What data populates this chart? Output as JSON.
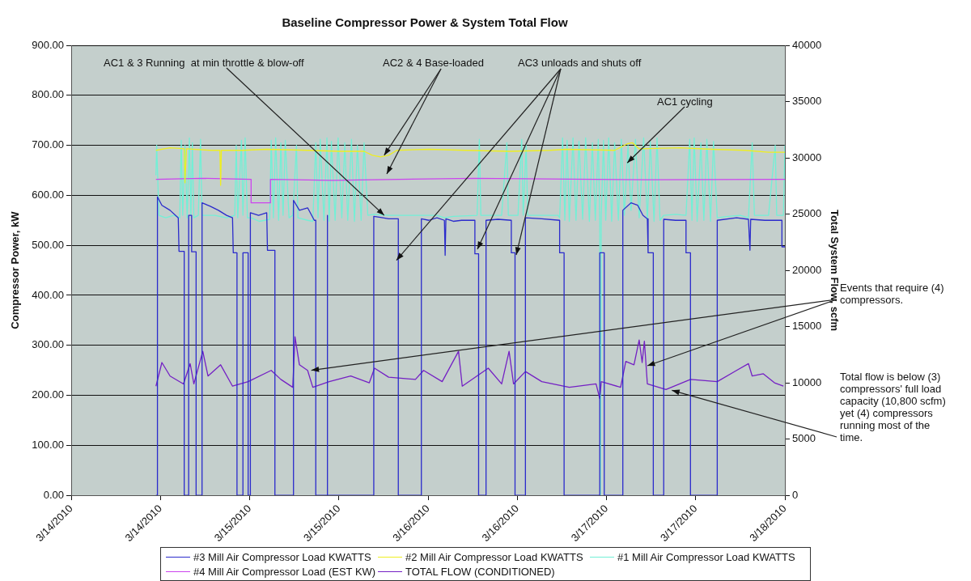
{
  "chart_data": {
    "type": "line",
    "title": "Baseline Compressor Power & System Total Flow",
    "ylabel": "Compressor Power, kW",
    "y2label": "Total System Flow, scfm",
    "xlim": [
      "2010-03-14T00:00",
      "2010-03-18T00:00"
    ],
    "xticks": [
      {
        "value": "2010-03-14T00:00",
        "label": "3/14/2010"
      },
      {
        "value": "2010-03-14T12:00",
        "label": "3/14/2010"
      },
      {
        "value": "2010-03-15T00:00",
        "label": "3/15/2010"
      },
      {
        "value": "2010-03-15T12:00",
        "label": "3/15/2010"
      },
      {
        "value": "2010-03-16T00:00",
        "label": "3/16/2010"
      },
      {
        "value": "2010-03-16T12:00",
        "label": "3/16/2010"
      },
      {
        "value": "2010-03-17T00:00",
        "label": "3/17/2010"
      },
      {
        "value": "2010-03-17T12:00",
        "label": "3/17/2010"
      },
      {
        "value": "2010-03-18T00:00",
        "label": "3/18/2010"
      }
    ],
    "ylim": [
      0,
      900
    ],
    "yticks": [
      {
        "value": 0,
        "label": "0.00"
      },
      {
        "value": 100,
        "label": "100.00"
      },
      {
        "value": 200,
        "label": "200.00"
      },
      {
        "value": 300,
        "label": "300.00"
      },
      {
        "value": 400,
        "label": "400.00"
      },
      {
        "value": 500,
        "label": "500.00"
      },
      {
        "value": 600,
        "label": "600.00"
      },
      {
        "value": 700,
        "label": "700.00"
      },
      {
        "value": 800,
        "label": "800.00"
      },
      {
        "value": 900,
        "label": "900.00"
      }
    ],
    "y2lim": [
      0,
      40000
    ],
    "y2ticks": [
      0,
      5000,
      10000,
      15000,
      20000,
      25000,
      30000,
      35000,
      40000
    ],
    "grid": "y",
    "legend": "bottom",
    "marker": "none",
    "line_style": "solid",
    "annotations": [
      {
        "text": "AC1 & 3 Running  at min throttle & blow-off",
        "x": "2010-03-15T18:06",
        "y": 560
      },
      {
        "text": "AC2 & 4 Base-loaded",
        "x": "2010-03-15T18:06",
        "y": 680
      },
      {
        "text": "AC3 unloads and shuts off",
        "x": "2010-03-15T19:45",
        "y": 470
      },
      {
        "text": "AC1 cycling",
        "x": "2010-03-17T02:48",
        "y": 665
      },
      {
        "text": "Events that require (4) compressors.",
        "x": "2010-03-15T08:18",
        "y": 250
      },
      {
        "text": "Total flow is below (3) compressors' full load capacity (10,800 scfm) yet (4) compressors running most of the time.",
        "x": "2010-03-17T08:48",
        "y": 210
      }
    ],
    "series": [
      {
        "name": "#3 Mill Air Compressor Load KWATTS",
        "color": "#2b2bcc",
        "x": [
          "2010-03-14T11:24",
          "2010-03-14T11:36",
          "2010-03-14T11:36",
          "2010-03-14T12:12",
          "2010-03-14T13:18",
          "2010-03-14T14:24",
          "2010-03-14T14:30",
          "2010-03-14T15:12",
          "2010-03-14T15:12",
          "2010-03-14T15:48",
          "2010-03-14T15:48",
          "2010-03-14T16:12",
          "2010-03-14T16:12",
          "2010-03-14T16:48",
          "2010-03-14T16:48",
          "2010-03-14T17:36",
          "2010-03-14T17:36",
          "2010-03-14T18:42",
          "2010-03-14T19:48",
          "2010-03-14T20:54",
          "2010-03-14T21:42",
          "2010-03-14T21:48",
          "2010-03-14T22:18",
          "2010-03-14T22:18",
          "2010-03-14T23:06",
          "2010-03-14T23:06",
          "2010-03-14T23:48",
          "2010-03-14T23:48",
          "2010-03-15T00:06",
          "2010-03-15T00:06",
          "2010-03-15T01:12",
          "2010-03-15T02:18",
          "2010-03-15T02:24",
          "2010-03-15T03:24",
          "2010-03-15T03:24",
          "2010-03-15T05:54",
          "2010-03-15T05:54",
          "2010-03-15T06:42",
          "2010-03-15T07:48",
          "2010-03-15T08:42",
          "2010-03-15T08:54",
          "2010-03-15T08:54",
          "2010-03-15T10:24",
          "2010-03-15T10:24",
          "2010-03-15T10:30",
          "2010-03-15T10:30",
          "2010-03-15T16:42",
          "2010-03-15T16:42",
          "2010-03-15T17:36",
          "2010-03-15T18:42",
          "2010-03-15T20:00",
          "2010-03-15T20:00",
          "2010-03-15T23:06",
          "2010-03-15T23:06",
          "2010-03-16T00:06",
          "2010-03-16T01:12",
          "2010-03-16T02:12",
          "2010-03-16T02:18",
          "2010-03-16T02:24",
          "2010-03-16T03:24",
          "2010-03-16T04:30",
          "2010-03-16T06:18",
          "2010-03-16T06:18",
          "2010-03-16T06:48",
          "2010-03-16T06:48",
          "2010-03-16T07:48",
          "2010-03-16T07:48",
          "2010-03-16T09:24",
          "2010-03-16T11:12",
          "2010-03-16T11:12",
          "2010-03-16T11:42",
          "2010-03-16T11:42",
          "2010-03-16T13:06",
          "2010-03-16T13:06",
          "2010-03-16T15:18",
          "2010-03-16T17:42",
          "2010-03-16T17:42",
          "2010-03-16T18:18",
          "2010-03-16T18:18",
          "2010-03-16T23:06",
          "2010-03-16T23:06",
          "2010-03-16T23:42",
          "2010-03-16T23:42",
          "2010-03-17T02:12",
          "2010-03-17T02:12",
          "2010-03-17T03:18",
          "2010-03-17T04:12",
          "2010-03-17T04:54",
          "2010-03-17T05:30",
          "2010-03-17T05:36",
          "2010-03-17T06:18",
          "2010-03-17T06:18",
          "2010-03-17T07:42",
          "2010-03-17T07:42",
          "2010-03-17T09:18",
          "2010-03-17T10:42",
          "2010-03-17T10:42",
          "2010-03-17T11:18",
          "2010-03-17T11:18",
          "2010-03-17T14:54",
          "2010-03-17T14:54",
          "2010-03-17T17:30",
          "2010-03-17T19:06",
          "2010-03-17T19:18",
          "2010-03-17T19:24",
          "2010-03-17T21:18",
          "2010-03-17T23:36",
          "2010-03-17T23:36",
          "2010-03-18T00:00"
        ],
        "values": [
          0,
          0,
          597,
          580,
          570,
          555,
          488,
          488,
          0,
          0,
          560,
          560,
          487,
          487,
          0,
          0,
          585,
          578,
          570,
          560,
          555,
          485,
          485,
          0,
          0,
          485,
          485,
          0,
          0,
          565,
          560,
          565,
          490,
          490,
          0,
          0,
          590,
          570,
          575,
          550,
          550,
          0,
          0,
          560,
          560,
          0,
          0,
          558,
          556,
          553,
          553,
          0,
          0,
          553,
          550,
          555,
          550,
          480,
          553,
          548,
          550,
          550,
          483,
          483,
          0,
          0,
          550,
          552,
          550,
          485,
          485,
          0,
          0,
          555,
          553,
          550,
          485,
          485,
          0,
          0,
          485,
          485,
          0,
          0,
          570,
          585,
          580,
          560,
          553,
          485,
          485,
          0,
          0,
          552,
          550,
          550,
          485,
          485,
          0,
          0,
          550,
          555,
          552,
          490,
          552,
          550,
          550,
          497,
          497
        ]
      },
      {
        "name": "#2 Mill Air Compressor Load KWATTS",
        "color": "#eeee22",
        "x": [
          "2010-03-14T11:24",
          "2010-03-14T13:18",
          "2010-03-14T15:12",
          "2010-03-14T15:18",
          "2010-03-14T15:30",
          "2010-03-14T18:42",
          "2010-03-14T20:00",
          "2010-03-14T20:06",
          "2010-03-14T20:12",
          "2010-03-14T23:06",
          "2010-03-15T02:18",
          "2010-03-15T07:48",
          "2010-03-15T12:06",
          "2010-03-15T15:24",
          "2010-03-15T16:30",
          "2010-03-15T17:36",
          "2010-03-15T18:42",
          "2010-03-15T19:48",
          "2010-03-16T00:06",
          "2010-03-16T05:00",
          "2010-03-16T11:00",
          "2010-03-16T16:24",
          "2010-03-16T18:36",
          "2010-03-17T01:06",
          "2010-03-17T02:48",
          "2010-03-17T03:30",
          "2010-03-17T04:24",
          "2010-03-17T09:54",
          "2010-03-17T14:12",
          "2010-03-17T18:36",
          "2010-03-17T21:48",
          "2010-03-18T00:00"
        ],
        "values": [
          690,
          695,
          693,
          625,
          693,
          690,
          690,
          620,
          690,
          690,
          692,
          690,
          688,
          688,
          680,
          677,
          680,
          690,
          692,
          690,
          688,
          690,
          692,
          690,
          703,
          705,
          693,
          695,
          692,
          690,
          686,
          686
        ]
      },
      {
        "name": "#1 Mill Air Compressor Load KWATTS",
        "color": "#72f0d6",
        "x": [
          "2010-03-14T11:24",
          "2010-03-14T11:30",
          "2010-03-14T11:48",
          "2010-03-14T12:42",
          "2010-03-14T13:48",
          "2010-03-14T14:36",
          "2010-03-14T14:48",
          "2010-03-14T15:00",
          "2010-03-14T15:18",
          "2010-03-14T15:36",
          "2010-03-14T15:54",
          "2010-03-14T16:06",
          "2010-03-14T16:18",
          "2010-03-14T16:30",
          "2010-03-14T17:06",
          "2010-03-14T17:24",
          "2010-03-14T17:36",
          "2010-03-14T19:18",
          "2010-03-14T20:54",
          "2010-03-14T22:00",
          "2010-03-14T22:12",
          "2010-03-14T22:24",
          "2010-03-14T22:54",
          "2010-03-14T23:06",
          "2010-03-14T23:24",
          "2010-03-14T23:42",
          "2010-03-15T00:12",
          "2010-03-15T01:18",
          "2010-03-15T02:42",
          "2010-03-15T02:54",
          "2010-03-15T03:12",
          "2010-03-15T03:30",
          "2010-03-15T03:54",
          "2010-03-15T04:12",
          "2010-03-15T04:30",
          "2010-03-15T04:48",
          "2010-03-15T05:18",
          "2010-03-15T05:48",
          "2010-03-15T06:18",
          "2010-03-15T06:30",
          "2010-03-15T07:48",
          "2010-03-15T08:30",
          "2010-03-15T08:54",
          "2010-03-15T09:12",
          "2010-03-15T09:30",
          "2010-03-15T10:00",
          "2010-03-15T10:24",
          "2010-03-15T10:42",
          "2010-03-15T11:00",
          "2010-03-15T11:30",
          "2010-03-15T11:54",
          "2010-03-15T12:24",
          "2010-03-15T12:48",
          "2010-03-15T13:12",
          "2010-03-15T13:42",
          "2010-03-15T14:06",
          "2010-03-15T14:30",
          "2010-03-15T15:00",
          "2010-03-15T15:24",
          "2010-03-15T15:54",
          "2010-03-15T16:42",
          "2010-03-15T18:42",
          "2010-03-15T20:00",
          "2010-03-15T23:00",
          "2010-03-16T01:12",
          "2010-03-16T02:12",
          "2010-03-16T03:24",
          "2010-03-16T06:36",
          "2010-03-16T06:54",
          "2010-03-16T07:06",
          "2010-03-16T07:42",
          "2010-03-16T09:54",
          "2010-03-16T10:36",
          "2010-03-16T10:48",
          "2010-03-16T12:06",
          "2010-03-16T12:36",
          "2010-03-16T12:48",
          "2010-03-16T13:12",
          "2010-03-16T13:24",
          "2010-03-16T17:30",
          "2010-03-16T17:42",
          "2010-03-16T18:06",
          "2010-03-16T18:24",
          "2010-03-16T18:42",
          "2010-03-16T19:00",
          "2010-03-16T19:30",
          "2010-03-16T19:54",
          "2010-03-16T20:18",
          "2010-03-16T20:48",
          "2010-03-16T21:12",
          "2010-03-16T21:42",
          "2010-03-16T22:06",
          "2010-03-16T22:30",
          "2010-03-16T22:54",
          "2010-03-16T23:06",
          "2010-03-16T23:12",
          "2010-03-16T23:18",
          "2010-03-16T23:36",
          "2010-03-16T23:54",
          "2010-03-17T00:18",
          "2010-03-17T00:42",
          "2010-03-17T01:06",
          "2010-03-17T01:36",
          "2010-03-17T02:00",
          "2010-03-17T02:24",
          "2010-03-17T02:54",
          "2010-03-17T03:18",
          "2010-03-17T03:54",
          "2010-03-17T04:24",
          "2010-03-17T05:00",
          "2010-03-17T05:30",
          "2010-03-17T05:54",
          "2010-03-17T06:24",
          "2010-03-17T06:48",
          "2010-03-17T07:12",
          "2010-03-17T07:42",
          "2010-03-17T09:18",
          "2010-03-17T10:42",
          "2010-03-17T11:12",
          "2010-03-17T11:30",
          "2010-03-17T11:48",
          "2010-03-17T12:12",
          "2010-03-17T12:42",
          "2010-03-17T13:06",
          "2010-03-17T13:30",
          "2010-03-17T14:00",
          "2010-03-17T14:24",
          "2010-03-17T14:54",
          "2010-03-17T16:24",
          "2010-03-17T18:00",
          "2010-03-17T19:06",
          "2010-03-17T19:36",
          "2010-03-17T19:54",
          "2010-03-17T21:48",
          "2010-03-17T22:42",
          "2010-03-17T22:54",
          "2010-03-17T23:48",
          "2010-03-18T00:00"
        ],
        "values": [
          640,
          700,
          560,
          555,
          560,
          555,
          710,
          560,
          700,
          555,
          715,
          560,
          705,
          555,
          560,
          712,
          560,
          560,
          555,
          560,
          700,
          555,
          710,
          560,
          715,
          555,
          555,
          548,
          552,
          710,
          555,
          715,
          550,
          705,
          560,
          710,
          555,
          560,
          700,
          555,
          550,
          548,
          705,
          555,
          712,
          550,
          715,
          548,
          708,
          550,
          715,
          555,
          705,
          550,
          712,
          548,
          700,
          550,
          705,
          560,
          562,
          560,
          560,
          560,
          560,
          555,
          558,
          560,
          712,
          560,
          560,
          560,
          705,
          560,
          560,
          712,
          560,
          700,
          560,
          560,
          555,
          715,
          550,
          710,
          548,
          715,
          550,
          708,
          552,
          715,
          548,
          705,
          550,
          712,
          550,
          0,
          560,
          710,
          550,
          715,
          548,
          705,
          550,
          712,
          560,
          700,
          570,
          712,
          555,
          715,
          550,
          708,
          548,
          715,
          550,
          560,
          562,
          560,
          712,
          550,
          715,
          548,
          705,
          550,
          712,
          548,
          708,
          555,
          558,
          560,
          555,
          705,
          560,
          560,
          700,
          560,
          560,
          700
        ]
      },
      {
        "name": "#4 Mill Air Compressor Load (EST KW)",
        "color": "#cc44ee",
        "x": [
          "2010-03-14T11:24",
          "2010-03-14T17:36",
          "2010-03-15T00:12",
          "2010-03-15T00:12",
          "2010-03-15T02:48",
          "2010-03-15T02:48",
          "2010-03-15T11:06",
          "2010-03-16T06:12",
          "2010-03-17T05:30",
          "2010-03-18T00:00"
        ],
        "values": [
          632,
          634,
          632,
          585,
          585,
          632,
          630,
          634,
          631,
          632
        ]
      },
      {
        "name": "TOTAL FLOW (CONDITIONED)",
        "color": "#7420c4",
        "axis": "y2",
        "x": [
          "2010-03-14T11:24",
          "2010-03-14T12:12",
          "2010-03-14T13:18",
          "2010-03-14T15:06",
          "2010-03-14T16:00",
          "2010-03-14T16:30",
          "2010-03-14T17:42",
          "2010-03-14T18:24",
          "2010-03-14T20:06",
          "2010-03-14T21:42",
          "2010-03-14T23:48",
          "2010-03-15T02:54",
          "2010-03-15T04:12",
          "2010-03-15T05:48",
          "2010-03-15T06:06",
          "2010-03-15T06:42",
          "2010-03-15T07:48",
          "2010-03-15T08:30",
          "2010-03-15T10:42",
          "2010-03-15T13:36",
          "2010-03-15T16:06",
          "2010-03-15T16:48",
          "2010-03-15T18:42",
          "2010-03-15T22:18",
          "2010-03-15T23:24",
          "2010-03-16T01:54",
          "2010-03-16T04:06",
          "2010-03-16T04:36",
          "2010-03-16T08:06",
          "2010-03-16T09:54",
          "2010-03-16T10:54",
          "2010-03-16T11:30",
          "2010-03-16T13:06",
          "2010-03-16T15:18",
          "2010-03-16T19:00",
          "2010-03-16T22:36",
          "2010-03-16T23:06",
          "2010-03-16T23:18",
          "2010-03-17T01:54",
          "2010-03-17T02:36",
          "2010-03-17T03:42",
          "2010-03-17T04:24",
          "2010-03-17T04:48",
          "2010-03-17T05:06",
          "2010-03-17T05:30",
          "2010-03-17T08:00",
          "2010-03-17T11:18",
          "2010-03-17T14:54",
          "2010-03-17T17:30",
          "2010-03-17T19:06",
          "2010-03-17T19:36",
          "2010-03-17T21:06",
          "2010-03-17T22:36",
          "2010-03-17T23:48"
        ],
        "values": [
          9700,
          11800,
          10600,
          9900,
          11700,
          9900,
          12800,
          10600,
          11600,
          9700,
          10100,
          11100,
          10300,
          9600,
          14100,
          11600,
          11100,
          9600,
          10100,
          10600,
          10000,
          11300,
          10500,
          10300,
          11100,
          10100,
          12800,
          9700,
          11300,
          9900,
          12800,
          9900,
          11000,
          10100,
          9600,
          9900,
          8600,
          10100,
          9600,
          11900,
          11600,
          13800,
          11800,
          13700,
          9900,
          9400,
          10300,
          10100,
          11100,
          11700,
          10600,
          10800,
          10000,
          9700
        ]
      }
    ]
  }
}
